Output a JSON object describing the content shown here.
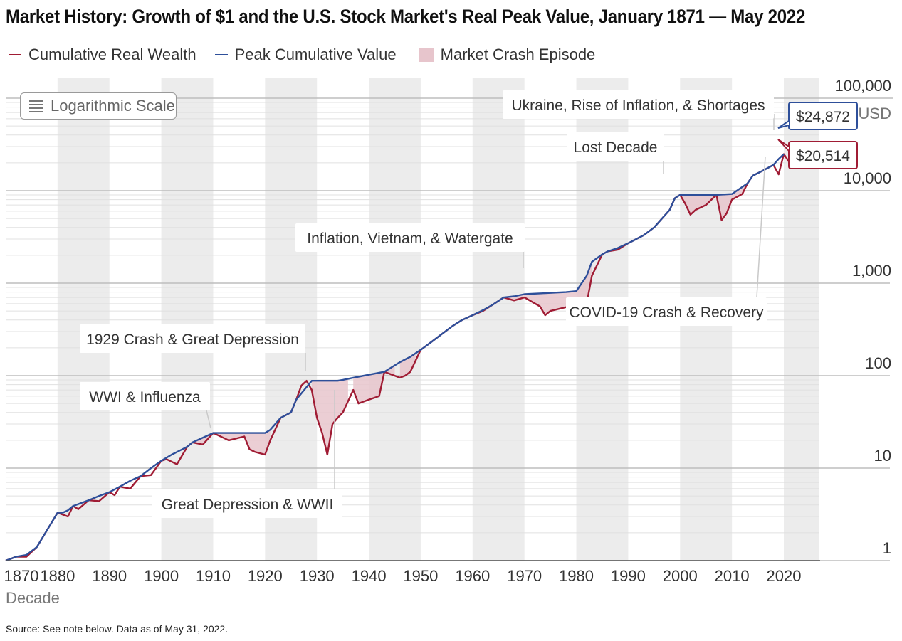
{
  "title": "Market History: Growth of $1 and the U.S. Stock Market's Real Peak Value, January 1871 — May 2022",
  "legend": {
    "wealth": "Cumulative Real Wealth",
    "peak": "Peak Cumulative Value",
    "crash": "Market Crash Episode"
  },
  "controls": {
    "log_scale_label": "Logarithmic Scale"
  },
  "source": "Source: See note below. Data as of May 31, 2022.",
  "colors": {
    "wealth": "#a01c34",
    "peak": "#2e4f9a",
    "crash": "#e7c5cc",
    "band": "#ececec"
  },
  "chart_data": {
    "type": "line",
    "xlabel": "Decade",
    "ylabel_unit": "USD",
    "yscale": "log",
    "xlim": [
      1870,
      2022
    ],
    "ylim": [
      1,
      100000
    ],
    "x_ticks": [
      1870,
      1880,
      1890,
      1900,
      1910,
      1920,
      1930,
      1940,
      1950,
      1960,
      1970,
      1980,
      1990,
      2000,
      2010,
      2020
    ],
    "y_ticks": [
      {
        "value": 1,
        "label": "1"
      },
      {
        "value": 10,
        "label": "10"
      },
      {
        "value": 100,
        "label": "100"
      },
      {
        "value": 1000,
        "label": "1,000"
      },
      {
        "value": 10000,
        "label": "10,000"
      },
      {
        "value": 100000,
        "label": "100,000"
      }
    ],
    "series": [
      {
        "name": "Peak Cumulative Value",
        "key": "peak",
        "x": [
          1870,
          1872,
          1874,
          1876,
          1880,
          1881,
          1882,
          1883,
          1886,
          1888,
          1890,
          1892,
          1894,
          1896,
          1898,
          1900,
          1902,
          1905,
          1906,
          1910,
          1920,
          1921,
          1923,
          1925,
          1926,
          1929,
          1930,
          1934,
          1935,
          1937,
          1943,
          1946,
          1948,
          1950,
          1952,
          1954,
          1956,
          1958,
          1960,
          1962,
          1964,
          1966,
          1968,
          1970,
          1974,
          1978,
          1980,
          1982,
          1983,
          1985,
          1986,
          1988,
          1990,
          1993,
          1995,
          1998,
          1999,
          2000,
          2003,
          2007,
          2010,
          2013,
          2014,
          2016,
          2018,
          2019,
          2020
        ],
        "y": [
          1,
          1.1,
          1.15,
          1.4,
          3.3,
          3.3,
          3.5,
          3.9,
          4.5,
          5,
          5.5,
          6.3,
          7.3,
          8.2,
          10,
          12,
          14,
          17,
          19,
          24,
          24,
          26,
          35,
          40,
          55,
          88,
          88,
          88,
          90,
          95,
          110,
          140,
          160,
          190,
          230,
          280,
          340,
          400,
          450,
          510,
          590,
          700,
          720,
          760,
          780,
          800,
          820,
          1200,
          1700,
          2050,
          2200,
          2400,
          2700,
          3300,
          4000,
          6200,
          8300,
          9000,
          9000,
          9000,
          9200,
          12000,
          14500,
          16500,
          19000,
          22000,
          24872
        ]
      },
      {
        "name": "Cumulative Real Wealth",
        "key": "wealth",
        "x": [
          1870,
          1872,
          1874,
          1876,
          1880,
          1882,
          1883,
          1884,
          1886,
          1888,
          1890,
          1891,
          1892,
          1894,
          1896,
          1898,
          1900,
          1901,
          1903,
          1905,
          1906,
          1908,
          1910,
          1913,
          1916,
          1917,
          1918,
          1920,
          1921,
          1923,
          1925,
          1926,
          1927,
          1928,
          1929,
          1930,
          1931,
          1932,
          1933,
          1934,
          1935,
          1937,
          1938,
          1940,
          1942,
          1943,
          1946,
          1947,
          1948,
          1950,
          1952,
          1954,
          1956,
          1958,
          1960,
          1962,
          1964,
          1966,
          1968,
          1970,
          1973,
          1974,
          1975,
          1978,
          1980,
          1982,
          1983,
          1985,
          1986,
          1988,
          1990,
          1993,
          1995,
          1998,
          1999,
          2000,
          2001,
          2002,
          2003,
          2005,
          2007,
          2008,
          2009,
          2010,
          2012,
          2013,
          2014,
          2016,
          2018,
          2019,
          2020,
          2021
        ],
        "y": [
          1,
          1.1,
          1.1,
          1.4,
          3.3,
          3.0,
          3.9,
          3.6,
          4.5,
          4.4,
          5.5,
          5.1,
          6.3,
          6.0,
          8.2,
          8.4,
          12,
          12.5,
          11,
          17,
          19,
          18,
          24,
          20,
          22,
          16,
          15,
          14,
          20,
          35,
          40,
          55,
          78,
          88,
          70,
          35,
          24,
          14,
          30,
          35,
          40,
          70,
          50,
          55,
          60,
          110,
          95,
          100,
          110,
          190,
          230,
          280,
          340,
          400,
          450,
          500,
          590,
          700,
          650,
          700,
          560,
          450,
          500,
          550,
          600,
          600,
          1200,
          2050,
          2200,
          2300,
          2700,
          3300,
          4000,
          6200,
          8300,
          9000,
          7200,
          5500,
          6200,
          7000,
          9000,
          4800,
          5700,
          8000,
          9200,
          12000,
          14500,
          16500,
          19000,
          15000,
          24872,
          20514
        ]
      }
    ],
    "crash_episodes": [
      [
        1906,
        1921
      ],
      [
        1929,
        1936
      ],
      [
        1937,
        1945
      ],
      [
        1946,
        1949
      ],
      [
        1966,
        1983
      ],
      [
        2000,
        2013
      ]
    ],
    "annotations": [
      "WWI & Influenza",
      "1929 Crash & Great Depression",
      "Great Depression & WWII",
      "Inflation, Vietnam, & Watergate",
      "Lost Decade",
      "COVID-19 Crash & Recovery",
      "Ukraine, Rise of Inflation, & Shortages"
    ],
    "callouts": {
      "peak_value": "$24,872",
      "current_value": "$20,514"
    }
  }
}
